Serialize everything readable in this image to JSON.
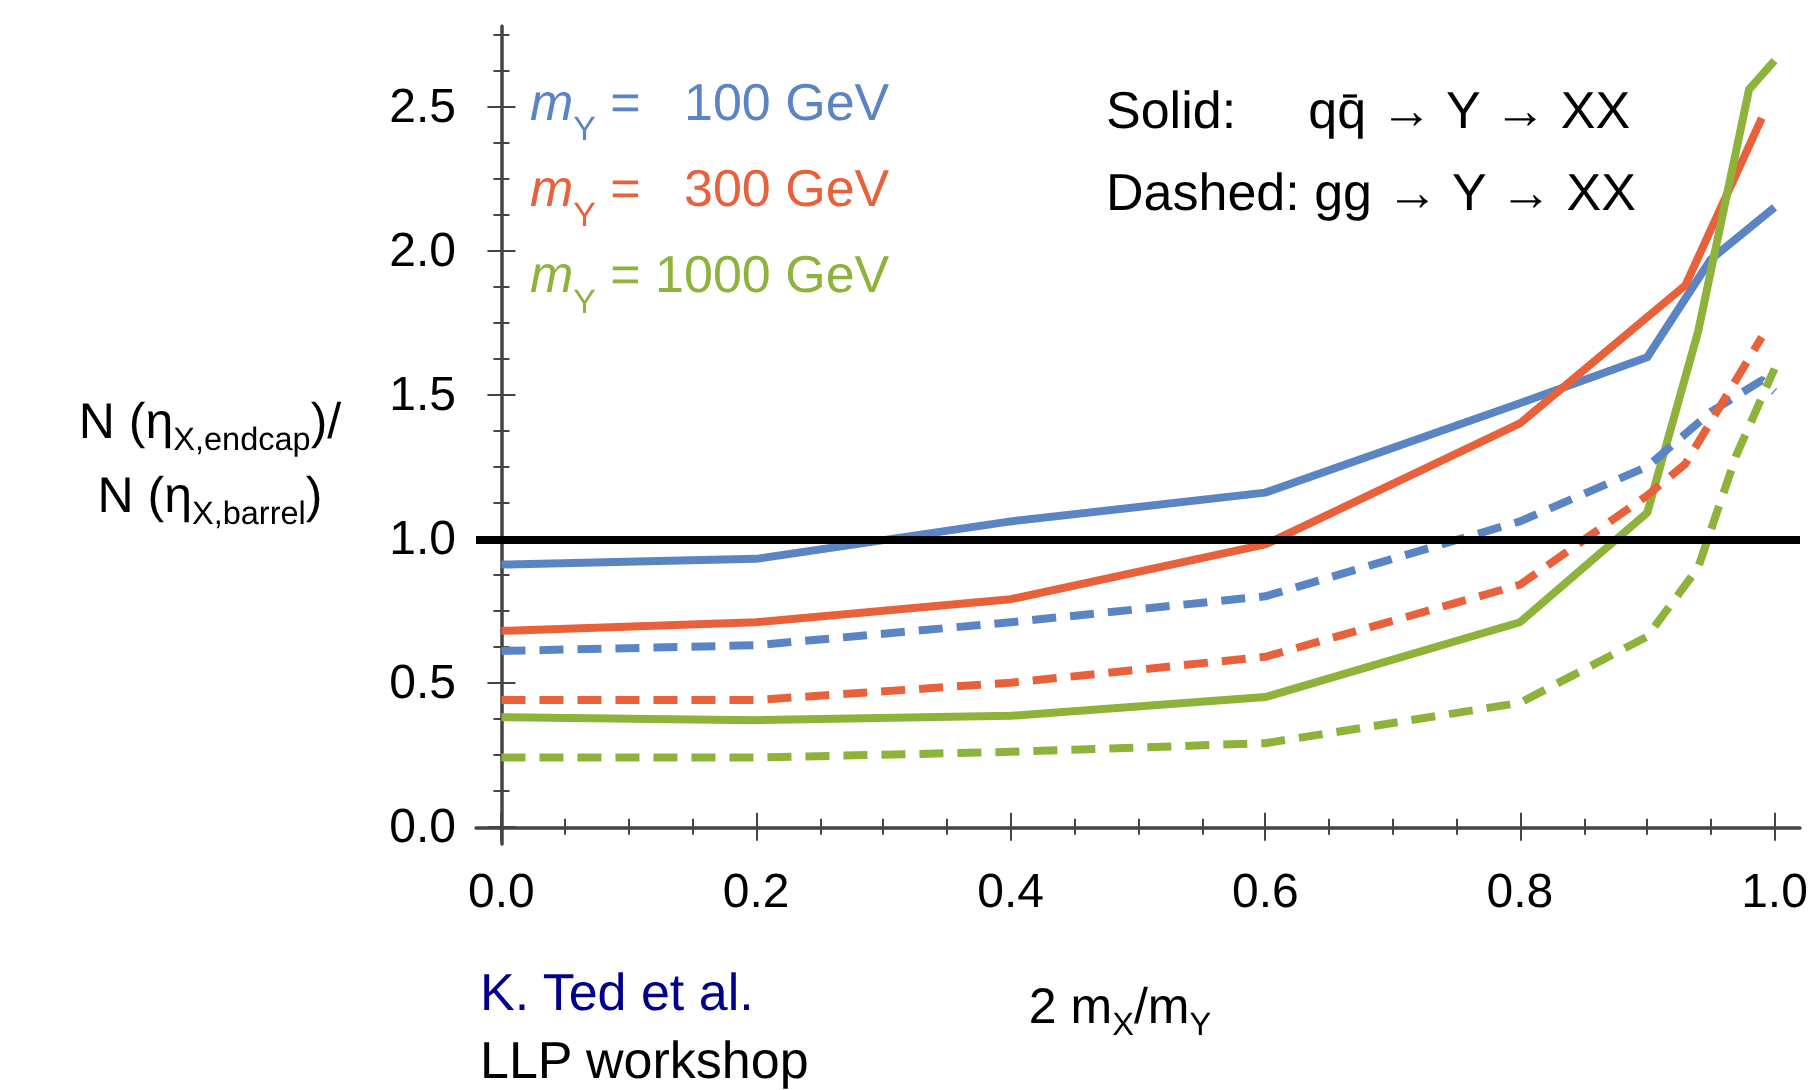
{
  "chart_data": {
    "type": "line",
    "xlabel": "2 m$_{X}$/m$_{Y}$",
    "ylabel": "N (η$_{X,endcap}$)/N (η$_{X,barrel}$)",
    "xlim": [
      -0.02,
      1.02
    ],
    "xticks": [
      {
        "value": 0,
        "label": "0.0"
      },
      0.2,
      0.4,
      0.6,
      0.8,
      {
        "value": 1,
        "label": "1.0"
      }
    ],
    "ylim": [
      -0.06,
      2.78
    ],
    "yticks": [
      {
        "value": 0,
        "label": "0.0"
      },
      0.5,
      {
        "value": 1,
        "label": "1.0"
      },
      1.5,
      {
        "value": 2,
        "label": "2.0"
      },
      2.5
    ],
    "grid": false,
    "legend": "top left",
    "marker": "none",
    "ref_lines": [
      {
        "axis": "y",
        "value": 1.0,
        "color": "#000000"
      }
    ],
    "annotations": [
      "Solid:     qq̄ → Y → XX",
      "Dashed: gg → Y → XX",
      "K. Ted et al.",
      "LLP workshop"
    ],
    "series": [
      {
        "name": "m$_{Y}$ =   100 GeV",
        "color": "#5b84c4",
        "line_style": "solid",
        "x": [
          0,
          0.2,
          0.4,
          0.6,
          0.8,
          0.9,
          0.95,
          1.0
        ],
        "values": [
          0.91,
          0.93,
          1.06,
          1.16,
          1.47,
          1.63,
          1.97,
          2.15
        ]
      },
      {
        "name": "m$_{Y}$ =   300 GeV",
        "color": "#e8613b",
        "line_style": "solid",
        "x": [
          0,
          0.2,
          0.4,
          0.6,
          0.8,
          0.93,
          0.99
        ],
        "values": [
          0.68,
          0.71,
          0.79,
          0.98,
          1.4,
          1.88,
          2.46
        ]
      },
      {
        "name": "m$_{Y}$ = 1000 GeV",
        "color": "#8db33a",
        "line_style": "solid",
        "x": [
          0,
          0.2,
          0.4,
          0.6,
          0.8,
          0.9,
          0.94,
          0.98,
          1.0
        ],
        "values": [
          0.38,
          0.37,
          0.385,
          0.45,
          0.71,
          1.09,
          1.72,
          2.56,
          2.66
        ]
      },
      {
        "color": "#5b84c4",
        "line_style": "dashed",
        "x": [
          0,
          0.2,
          0.4,
          0.6,
          0.8,
          0.9,
          0.95,
          0.99,
          1.0
        ],
        "values": [
          0.61,
          0.63,
          0.71,
          0.8,
          1.06,
          1.25,
          1.44,
          1.55,
          1.51
        ]
      },
      {
        "color": "#e8613b",
        "line_style": "dashed",
        "x": [
          0,
          0.2,
          0.4,
          0.6,
          0.8,
          0.9,
          0.93,
          0.99
        ],
        "values": [
          0.44,
          0.44,
          0.5,
          0.59,
          0.84,
          1.15,
          1.26,
          1.7
        ]
      },
      {
        "color": "#8db33a",
        "line_style": "dashed",
        "x": [
          0,
          0.2,
          0.4,
          0.6,
          0.8,
          0.9,
          0.94,
          0.97,
          1.0
        ],
        "values": [
          0.24,
          0.24,
          0.26,
          0.29,
          0.43,
          0.66,
          0.9,
          1.29,
          1.59
        ]
      }
    ]
  }
}
